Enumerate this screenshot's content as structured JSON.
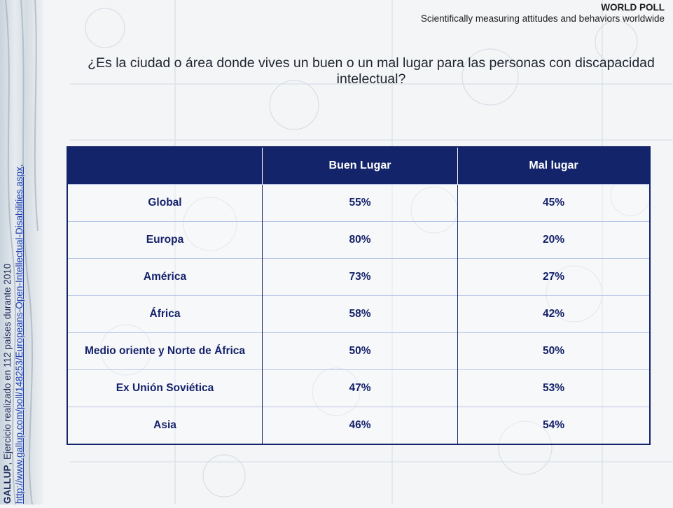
{
  "header": {
    "title": "WORLD POLL",
    "subtitle": "Scientifically measuring attitudes and behaviors worldwide"
  },
  "question": "¿Es la ciudad  o área donde vives un buen o un mal lugar para las personas con discapacidad intelectual?",
  "side_caption": {
    "brand": "GALLUP",
    "text": ", Ejercicio realizado en 112 países durante 2010",
    "link": "http://www.gallup.com/poll/148253/Europeans-Open-Intellectual-Disabilities.aspx",
    "link_suffix": "."
  },
  "table": {
    "headers": [
      "",
      "Buen Lugar",
      "Mal lugar"
    ],
    "rows": [
      {
        "region": "Global",
        "buen": "55%",
        "mal": "45%"
      },
      {
        "region": "Europa",
        "buen": "80%",
        "mal": "20%"
      },
      {
        "region": "América",
        "buen": "73%",
        "mal": "27%"
      },
      {
        "region": "África",
        "buen": "58%",
        "mal": "42%"
      },
      {
        "region": "Medio oriente y Norte de África",
        "buen": "50%",
        "mal": "50%"
      },
      {
        "region": "Ex Unión Soviética",
        "buen": "47%",
        "mal": "53%"
      },
      {
        "region": "Asia",
        "buen": "46%",
        "mal": "54%"
      }
    ]
  },
  "colors": {
    "header_bg": "#14246a",
    "value_text": "#15226a"
  }
}
